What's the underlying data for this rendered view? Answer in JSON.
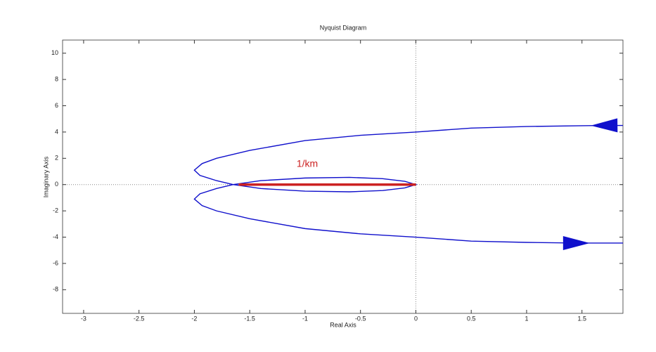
{
  "chart_data": {
    "type": "line",
    "title": "Nyquist Diagram",
    "x_label": "Real Axis",
    "y_label": "Imaginary Axis",
    "annotation": "1/km",
    "annotation_color": "#cc2222",
    "xlim": [
      -3.19,
      1.87
    ],
    "ylim": [
      -9.8,
      11.0
    ],
    "xticks": [
      -3,
      -2.5,
      -2,
      -1.5,
      -1,
      -0.5,
      0,
      0.5,
      1,
      1.5
    ],
    "yticks": [
      -8,
      -6,
      -4,
      -2,
      0,
      2,
      4,
      6,
      8,
      10
    ],
    "series": [
      {
        "color": "#1010cc",
        "x": [
          1.87,
          1.7,
          1.5,
          1,
          0.5,
          0,
          -0.5,
          -1,
          -1.5,
          -1.8,
          -1.93,
          -2,
          -1.95,
          -1.8,
          -1.65
        ],
        "values": [
          4.5,
          4.5,
          4.48,
          4.42,
          4.3,
          4.0,
          3.75,
          3.35,
          2.6,
          2.0,
          1.6,
          1.1,
          0.7,
          0.3,
          0
        ]
      },
      {
        "color": "#1010cc",
        "x": [
          -1.65,
          -1.8,
          -1.95,
          -2,
          -1.93,
          -1.8,
          -1.5,
          -1,
          -0.5,
          0,
          0.5,
          1,
          1.45,
          1.87
        ],
        "values": [
          0,
          -0.3,
          -0.7,
          -1.1,
          -1.6,
          -2.0,
          -2.6,
          -3.35,
          -3.75,
          -4.0,
          -4.3,
          -4.4,
          -4.45,
          -4.45
        ]
      },
      {
        "color": "#1010cc",
        "x": [
          -1.65,
          -1.4,
          -1,
          -0.6,
          -0.3,
          -0.1,
          0,
          -0.1,
          -0.3,
          -0.6,
          -1,
          -1.4,
          -1.65
        ],
        "values": [
          0,
          0.3,
          0.5,
          0.55,
          0.45,
          0.25,
          0,
          -0.25,
          -0.45,
          -0.55,
          -0.5,
          -0.3,
          0
        ]
      },
      {
        "color": "#cc2222",
        "x": [
          -1.6,
          0
        ],
        "values": [
          0,
          0
        ]
      }
    ]
  }
}
